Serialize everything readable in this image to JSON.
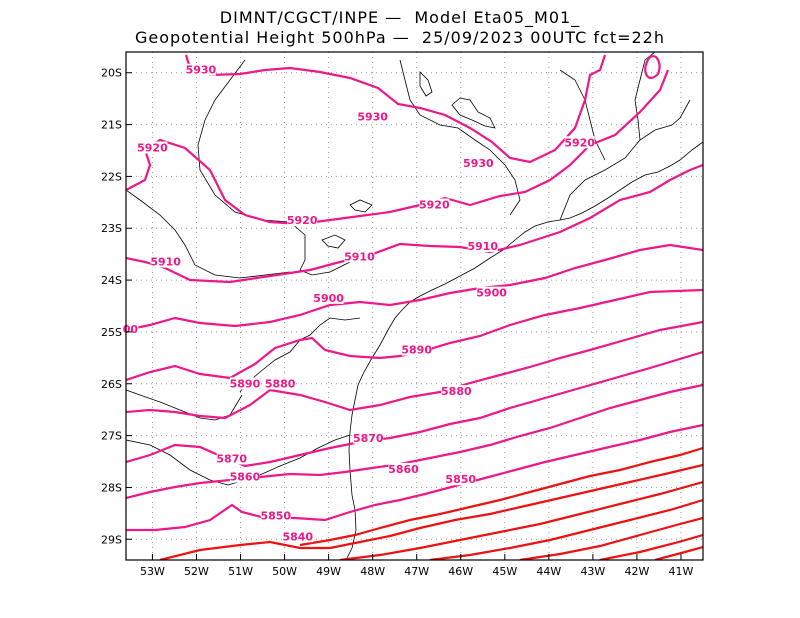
{
  "title": {
    "line1": "DIMNT/CGCT/INPE —  Model Eta05_M01_",
    "line2": "Geopotential Height 500hPa —  25/09/2023 00UTC fct=22h"
  },
  "map_data": {
    "lon_range": [
      -53.6,
      -40.5
    ],
    "lat_range": [
      -29.4,
      -19.6
    ],
    "lat_ticks": [
      {
        "value": -20,
        "label": "20S"
      },
      {
        "value": -21,
        "label": "21S"
      },
      {
        "value": -22,
        "label": "22S"
      },
      {
        "value": -23,
        "label": "23S"
      },
      {
        "value": -24,
        "label": "24S"
      },
      {
        "value": -25,
        "label": "25S"
      },
      {
        "value": -26,
        "label": "26S"
      },
      {
        "value": -27,
        "label": "27S"
      },
      {
        "value": -28,
        "label": "28S"
      },
      {
        "value": -29,
        "label": "29S"
      }
    ],
    "lon_ticks": [
      {
        "value": -53,
        "label": "53W"
      },
      {
        "value": -52,
        "label": "52W"
      },
      {
        "value": -51,
        "label": "51W"
      },
      {
        "value": -50,
        "label": "50W"
      },
      {
        "value": -49,
        "label": "49W"
      },
      {
        "value": -48,
        "label": "48W"
      },
      {
        "value": -47,
        "label": "47W"
      },
      {
        "value": -46,
        "label": "46W"
      },
      {
        "value": -45,
        "label": "45W"
      },
      {
        "value": -44,
        "label": "44W"
      },
      {
        "value": -43,
        "label": "43W"
      },
      {
        "value": -42,
        "label": "42W"
      },
      {
        "value": -41,
        "label": "41W"
      }
    ],
    "contour_color_high": "#ee1888",
    "contour_color_low": "#ee1111",
    "contour_labels": [
      {
        "text": "5930",
        "lon": -51.9,
        "lat": -20.0,
        "color": "#ee1888"
      },
      {
        "text": "5930",
        "lon": -48.0,
        "lat": -20.9,
        "color": "#ee1888"
      },
      {
        "text": "5930",
        "lon": -45.6,
        "lat": -21.8,
        "color": "#ee1888"
      },
      {
        "text": "5920",
        "lon": -53.0,
        "lat": -21.5,
        "color": "#ee1888"
      },
      {
        "text": "5920",
        "lon": -43.3,
        "lat": -21.4,
        "color": "#ee1888"
      },
      {
        "text": "5920",
        "lon": -49.6,
        "lat": -22.9,
        "color": "#ee1888"
      },
      {
        "text": "5920",
        "lon": -46.6,
        "lat": -22.6,
        "color": "#ee1888"
      },
      {
        "text": "5910",
        "lon": -52.7,
        "lat": -23.7,
        "color": "#ee1888"
      },
      {
        "text": "5910",
        "lon": -48.3,
        "lat": -23.6,
        "color": "#ee1888"
      },
      {
        "text": "5910",
        "lon": -45.5,
        "lat": -23.4,
        "color": "#ee1888"
      },
      {
        "text": "5900",
        "lon": -49.0,
        "lat": -24.4,
        "color": "#ee1888"
      },
      {
        "text": "5900",
        "lon": -45.3,
        "lat": -24.3,
        "color": "#ee1888"
      },
      {
        "text": "00",
        "lon": -53.5,
        "lat": -25.0,
        "color": "#ee1888"
      },
      {
        "text": "5890",
        "lon": -47.0,
        "lat": -25.4,
        "color": "#ee1888"
      },
      {
        "text": "5890",
        "lon": -50.9,
        "lat": -26.05,
        "color": "#ee1888"
      },
      {
        "text": "5880",
        "lon": -50.1,
        "lat": -26.05,
        "color": "#ee1888"
      },
      {
        "text": "5880",
        "lon": -46.1,
        "lat": -26.2,
        "color": "#ee1888"
      },
      {
        "text": "5870",
        "lon": -48.1,
        "lat": -27.1,
        "color": "#ee1888"
      },
      {
        "text": "5870",
        "lon": -51.2,
        "lat": -27.5,
        "color": "#ee1888"
      },
      {
        "text": "5860",
        "lon": -47.3,
        "lat": -27.7,
        "color": "#ee1888"
      },
      {
        "text": "5860",
        "lon": -50.9,
        "lat": -27.85,
        "color": "#ee1888"
      },
      {
        "text": "5850",
        "lon": -46.0,
        "lat": -27.9,
        "color": "#ee1888"
      },
      {
        "text": "5850",
        "lon": -50.2,
        "lat": -28.6,
        "color": "#ee1888"
      },
      {
        "text": "5840",
        "lon": -49.7,
        "lat": -29.0,
        "color": "#ee1888"
      }
    ]
  }
}
